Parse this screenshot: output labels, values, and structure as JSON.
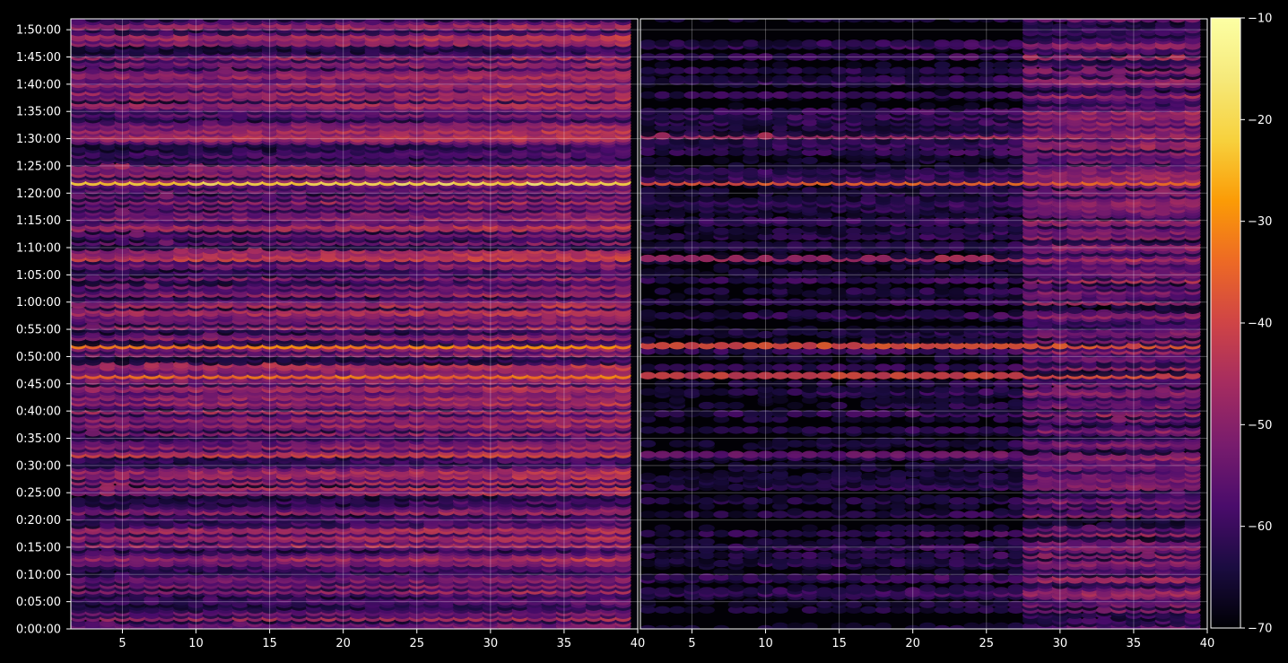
{
  "chart_data": {
    "type": "heatmap",
    "title": "",
    "xlabel": "",
    "ylabel": "",
    "panels": [
      {
        "name": "left",
        "xlim": [
          1.5,
          40
        ],
        "xticks": [
          5,
          10,
          15,
          20,
          25,
          30,
          35,
          40
        ]
      },
      {
        "name": "right",
        "xlim": [
          1.5,
          40
        ],
        "xticks": [
          5,
          10,
          15,
          20,
          25,
          30,
          35,
          40
        ]
      }
    ],
    "ylim": [
      "0:00:00",
      "1:52:00"
    ],
    "yticks": [
      "0:00:00",
      "0:05:00",
      "0:10:00",
      "0:15:00",
      "0:20:00",
      "0:25:00",
      "0:30:00",
      "0:35:00",
      "0:40:00",
      "0:45:00",
      "0:50:00",
      "0:55:00",
      "1:00:00",
      "1:05:00",
      "1:10:00",
      "1:15:00",
      "1:20:00",
      "1:25:00",
      "1:30:00",
      "1:35:00",
      "1:40:00",
      "1:45:00",
      "1:50:00"
    ],
    "grid": true,
    "colormap": "inferno",
    "colorbar": {
      "min": -70,
      "max": -10,
      "ticks": [
        -10,
        -20,
        -30,
        -40,
        -50,
        -60,
        -70
      ]
    },
    "strong_bands": [
      {
        "time": "1:22:00",
        "level_left": -22,
        "level_right": -38
      },
      {
        "time": "0:52:00",
        "level_left": -33,
        "level_right": -40
      },
      {
        "time": "0:46:30",
        "level_left": -35,
        "level_right": -42
      },
      {
        "time": "1:08:00",
        "level_left": -42,
        "level_right": -48
      },
      {
        "time": "0:32:00",
        "level_left": -42,
        "level_right": -55
      },
      {
        "time": "1:30:30",
        "level_left": -45,
        "level_right": -48
      }
    ]
  }
}
